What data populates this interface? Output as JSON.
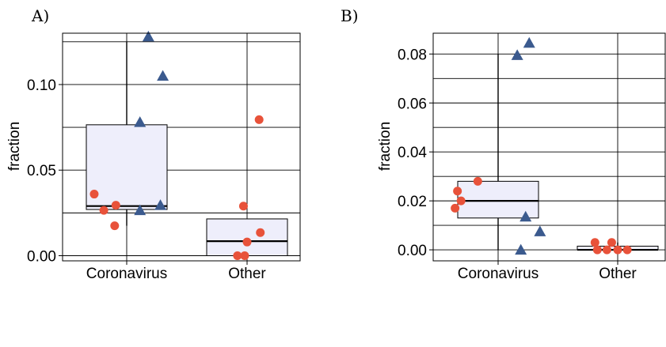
{
  "chart_data": [
    {
      "type": "box",
      "panel_label": "A)",
      "ylabel": "fraction",
      "xlabel": "",
      "categories": [
        "Coronavirus",
        "Other"
      ],
      "ylim": [
        -0.003,
        0.13
      ],
      "yticks": [
        0.0,
        0.05,
        0.1
      ],
      "ytick_labels": [
        "0.00",
        "0.05",
        "0.10"
      ],
      "grid": true,
      "colors": {
        "box_fill": "#eeeefb",
        "circle": "#e8523a",
        "triangle": "#3b5a8e"
      },
      "boxes": [
        {
          "category": "Coronavirus",
          "whisker_low": 0.0175,
          "q1": 0.027,
          "median": 0.029,
          "q3": 0.0765,
          "whisker_high": 0.125
        },
        {
          "category": "Other",
          "whisker_low": 0.0,
          "q1": 0.0,
          "median": 0.0085,
          "q3": 0.0215,
          "whisker_high": 0.0215
        }
      ],
      "points": [
        {
          "category": "Coronavirus",
          "marker": "triangle",
          "offset": 0.18,
          "y": 0.128
        },
        {
          "category": "Coronavirus",
          "marker": "triangle",
          "offset": 0.3,
          "y": 0.105
        },
        {
          "category": "Coronavirus",
          "marker": "triangle",
          "offset": 0.11,
          "y": 0.078
        },
        {
          "category": "Coronavirus",
          "marker": "triangle",
          "offset": 0.28,
          "y": 0.0295
        },
        {
          "category": "Coronavirus",
          "marker": "triangle",
          "offset": 0.11,
          "y": 0.0265
        },
        {
          "category": "Coronavirus",
          "marker": "circle",
          "offset": -0.27,
          "y": 0.036
        },
        {
          "category": "Coronavirus",
          "marker": "circle",
          "offset": -0.09,
          "y": 0.0295
        },
        {
          "category": "Coronavirus",
          "marker": "circle",
          "offset": -0.19,
          "y": 0.0265
        },
        {
          "category": "Coronavirus",
          "marker": "circle",
          "offset": -0.1,
          "y": 0.0175
        },
        {
          "category": "Other",
          "marker": "circle",
          "offset": 0.1,
          "y": 0.0795
        },
        {
          "category": "Other",
          "marker": "circle",
          "offset": -0.03,
          "y": 0.029
        },
        {
          "category": "Other",
          "marker": "circle",
          "offset": 0.11,
          "y": 0.0135
        },
        {
          "category": "Other",
          "marker": "circle",
          "offset": 0.0,
          "y": 0.008
        },
        {
          "category": "Other",
          "marker": "circle",
          "offset": -0.08,
          "y": 0.0
        },
        {
          "category": "Other",
          "marker": "circle",
          "offset": -0.02,
          "y": 0.0
        }
      ]
    },
    {
      "type": "box",
      "panel_label": "B)",
      "ylabel": "fraction",
      "xlabel": "",
      "categories": [
        "Coronavirus",
        "Other"
      ],
      "ylim": [
        -0.0045,
        0.0885
      ],
      "yticks": [
        0.0,
        0.02,
        0.04,
        0.06,
        0.08
      ],
      "ytick_labels": [
        "0.00",
        "0.02",
        "0.04",
        "0.06",
        "0.08"
      ],
      "grid": true,
      "colors": {
        "box_fill": "#eeeefb",
        "circle": "#e8523a",
        "triangle": "#3b5a8e"
      },
      "boxes": [
        {
          "category": "Coronavirus",
          "whisker_low": 0.0,
          "q1": 0.013,
          "median": 0.02,
          "q3": 0.028,
          "whisker_high": 0.08
        },
        {
          "category": "Other",
          "whisker_low": 0.0,
          "q1": 0.0,
          "median": 0.0,
          "q3": 0.0015,
          "whisker_high": 0.003
        }
      ],
      "points": [
        {
          "category": "Coronavirus",
          "marker": "triangle",
          "offset": 0.26,
          "y": 0.0845
        },
        {
          "category": "Coronavirus",
          "marker": "triangle",
          "offset": 0.16,
          "y": 0.0795
        },
        {
          "category": "Coronavirus",
          "marker": "triangle",
          "offset": 0.23,
          "y": 0.0135
        },
        {
          "category": "Coronavirus",
          "marker": "triangle",
          "offset": 0.35,
          "y": 0.0075
        },
        {
          "category": "Coronavirus",
          "marker": "triangle",
          "offset": 0.19,
          "y": 0.0
        },
        {
          "category": "Coronavirus",
          "marker": "circle",
          "offset": -0.17,
          "y": 0.028
        },
        {
          "category": "Coronavirus",
          "marker": "circle",
          "offset": -0.34,
          "y": 0.024
        },
        {
          "category": "Coronavirus",
          "marker": "circle",
          "offset": -0.31,
          "y": 0.02
        },
        {
          "category": "Coronavirus",
          "marker": "circle",
          "offset": -0.36,
          "y": 0.017
        },
        {
          "category": "Other",
          "marker": "circle",
          "offset": -0.19,
          "y": 0.003
        },
        {
          "category": "Other",
          "marker": "circle",
          "offset": -0.05,
          "y": 0.003
        },
        {
          "category": "Other",
          "marker": "circle",
          "offset": -0.17,
          "y": 0.0
        },
        {
          "category": "Other",
          "marker": "circle",
          "offset": -0.09,
          "y": 0.0
        },
        {
          "category": "Other",
          "marker": "circle",
          "offset": 0.0,
          "y": 0.0
        },
        {
          "category": "Other",
          "marker": "circle",
          "offset": 0.08,
          "y": 0.0
        }
      ]
    }
  ]
}
